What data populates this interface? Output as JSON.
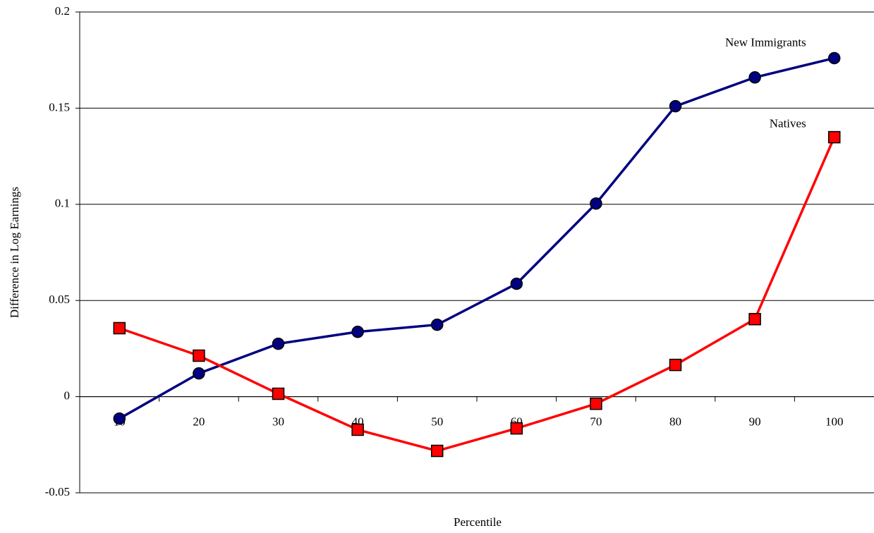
{
  "chart_data": {
    "type": "line",
    "y_label": "Difference in Log Earnings",
    "x_label": "Percentile",
    "categories": [
      "10",
      "20",
      "30",
      "40",
      "50",
      "60",
      "70",
      "80",
      "90",
      "100"
    ],
    "series": [
      {
        "name": "New Immigrants",
        "color": "#000080",
        "marker": "circle",
        "marker_color": "#000080",
        "values": [
          -0.0114,
          0.0121,
          0.0275,
          0.0337,
          0.0374,
          0.0587,
          0.1004,
          0.151,
          0.166,
          0.176
        ]
      },
      {
        "name": "Natives",
        "color": "#ff0000",
        "marker": "square",
        "marker_color": "#ff0000",
        "values": [
          0.0356,
          0.0213,
          0.0015,
          -0.0172,
          -0.0282,
          -0.0165,
          -0.0037,
          0.0165,
          0.0403,
          0.1349
        ]
      }
    ],
    "ylim": [
      -0.05,
      0.2
    ],
    "yticks": [
      -0.05,
      0,
      0.05,
      0.1,
      0.15,
      0.2
    ],
    "grid": true,
    "legend": "inline"
  }
}
